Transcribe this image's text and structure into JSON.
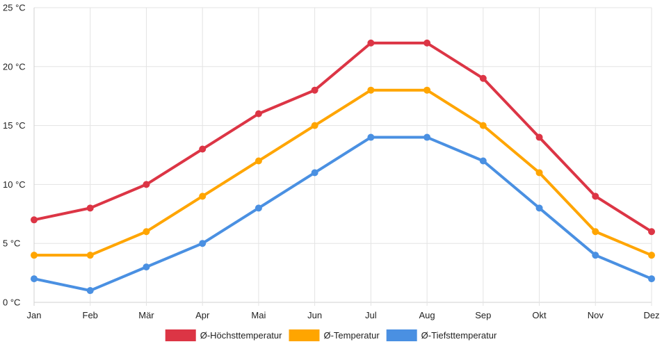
{
  "chart_data": {
    "type": "line",
    "categories": [
      "Jan",
      "Feb",
      "Mär",
      "Apr",
      "Mai",
      "Jun",
      "Jul",
      "Aug",
      "Sep",
      "Okt",
      "Nov",
      "Dez"
    ],
    "ylim": [
      0,
      25
    ],
    "yticks": [
      0,
      5,
      10,
      15,
      20,
      25
    ],
    "y_unit": "°C",
    "title": "",
    "xlabel": "",
    "ylabel": "",
    "grid": true,
    "legend_position": "bottom-center",
    "series": [
      {
        "name": "Ø-Höchsttemperatur",
        "color": "#dc3545",
        "values": [
          7,
          8,
          10,
          13,
          16,
          18,
          22,
          22,
          19,
          14,
          9,
          6
        ]
      },
      {
        "name": "Ø-Temperatur",
        "color": "#ffa500",
        "values": [
          4,
          4,
          6,
          9,
          12,
          15,
          18,
          18,
          15,
          11,
          6,
          4
        ]
      },
      {
        "name": "Ø-Tiefsttemperatur",
        "color": "#4a90e2",
        "values": [
          2,
          1,
          3,
          5,
          8,
          11,
          14,
          14,
          12,
          8,
          4,
          2
        ]
      }
    ]
  }
}
